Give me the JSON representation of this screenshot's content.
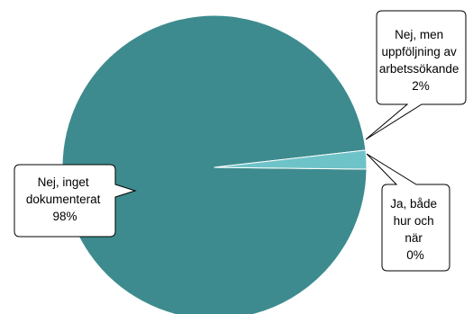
{
  "chart_data": {
    "type": "pie",
    "title": "",
    "slices": [
      {
        "label_lines": [
          "Nej, inget",
          "dokumenterat",
          "98%"
        ],
        "value": 98,
        "color": "#3d8b8e"
      },
      {
        "label_lines": [
          "Nej, men",
          "uppföljning av",
          "arbetssökande",
          "2%"
        ],
        "value": 2,
        "color": "#6ec3c8"
      },
      {
        "label_lines": [
          "Ja, både",
          "hur och",
          "när",
          "0%"
        ],
        "value": 0,
        "color": "#3d8b8e"
      }
    ],
    "legend": "none",
    "labels": "callouts"
  }
}
